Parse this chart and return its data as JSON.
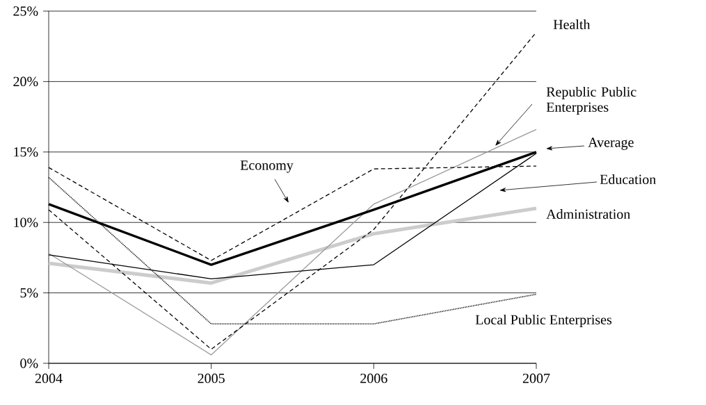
{
  "chart_data": {
    "type": "line",
    "x": [
      2004,
      2005,
      2006,
      2007
    ],
    "xlim": [
      2004,
      2007
    ],
    "xticks": [
      2004,
      2005,
      2006,
      2007
    ],
    "ylim": [
      0,
      25
    ],
    "yticks": [
      {
        "value": 0,
        "label": "0%"
      },
      {
        "value": 5,
        "label": "5%"
      },
      {
        "value": 10,
        "label": "10%"
      },
      {
        "value": 15,
        "label": "15%"
      },
      {
        "value": 20,
        "label": "20%"
      },
      {
        "value": 25,
        "label": "25%"
      }
    ],
    "grid": "y",
    "marker": "none",
    "series": [
      {
        "name": "Health",
        "color": "#000000",
        "line_style": "dashed",
        "values": [
          10.9,
          1.0,
          9.5,
          23.5
        ]
      },
      {
        "name": "Republic Public Enterprises",
        "color": "#999999",
        "line_style": "solid",
        "values": [
          7.8,
          0.6,
          11.3,
          16.6
        ]
      },
      {
        "name": "Average",
        "color": "#000000",
        "line_style": "solid",
        "values": [
          11.3,
          7.0,
          10.9,
          15.0
        ]
      },
      {
        "name": "Education",
        "color": "#000000",
        "line_style": "solid",
        "values": [
          7.7,
          6.0,
          7.0,
          14.9
        ]
      },
      {
        "name": "Administration",
        "color": "#cccccc",
        "line_style": "solid",
        "values": [
          7.1,
          5.7,
          9.2,
          11.0
        ]
      },
      {
        "name": "Local Public Enterprises",
        "color": "#000000",
        "line_style": "dotted",
        "values": [
          13.2,
          2.8,
          2.8,
          4.9
        ]
      },
      {
        "name": "Economy",
        "color": "#000000",
        "line_style": "dashed",
        "values": [
          13.9,
          7.3,
          13.8,
          14.0
        ]
      }
    ]
  }
}
